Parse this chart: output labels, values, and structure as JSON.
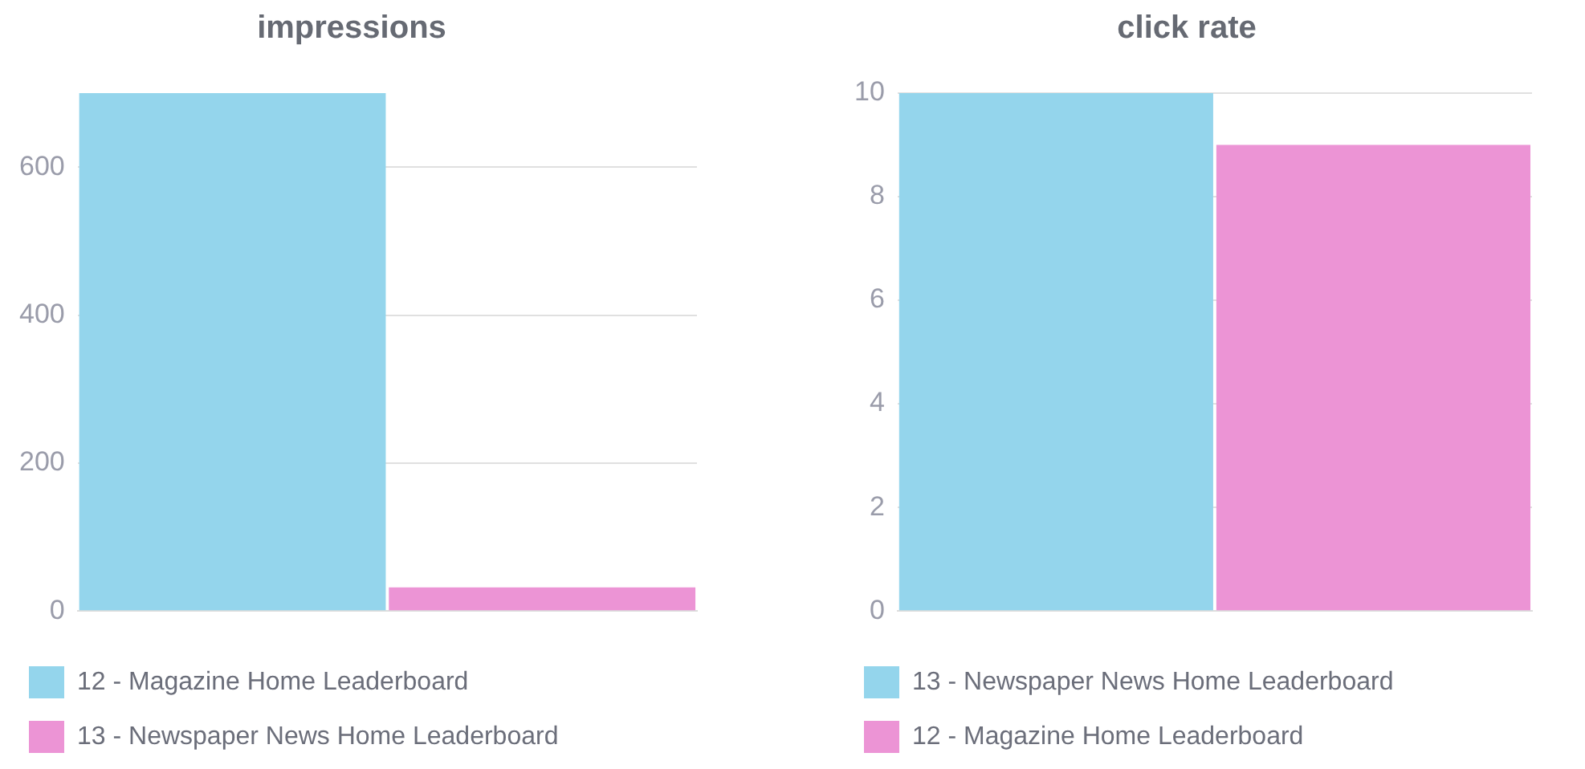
{
  "chart_data": [
    {
      "type": "bar",
      "title": "impressions",
      "categories": [
        null
      ],
      "ylim": [
        0,
        700
      ],
      "yticks": [
        0,
        200,
        400,
        600
      ],
      "grid": "y",
      "legend": "bottom",
      "series": [
        {
          "name": "12 - Magazine Home Leaderboard",
          "color": "#94d5ec",
          "values": [
            700
          ]
        },
        {
          "name": "13 - Newspaper News Home Leaderboard",
          "color": "#ec94d5",
          "values": [
            32
          ]
        }
      ]
    },
    {
      "type": "bar",
      "title": "click rate",
      "categories": [
        null
      ],
      "ylim": [
        0,
        10
      ],
      "yticks": [
        0,
        2,
        4,
        6,
        8,
        10
      ],
      "grid": "y",
      "legend": "bottom",
      "series": [
        {
          "name": "13 - Newspaper News Home Leaderboard",
          "color": "#94d5ec",
          "values": [
            10
          ]
        },
        {
          "name": "12 - Magazine Home Leaderboard",
          "color": "#ec94d5",
          "values": [
            9
          ]
        }
      ]
    }
  ]
}
